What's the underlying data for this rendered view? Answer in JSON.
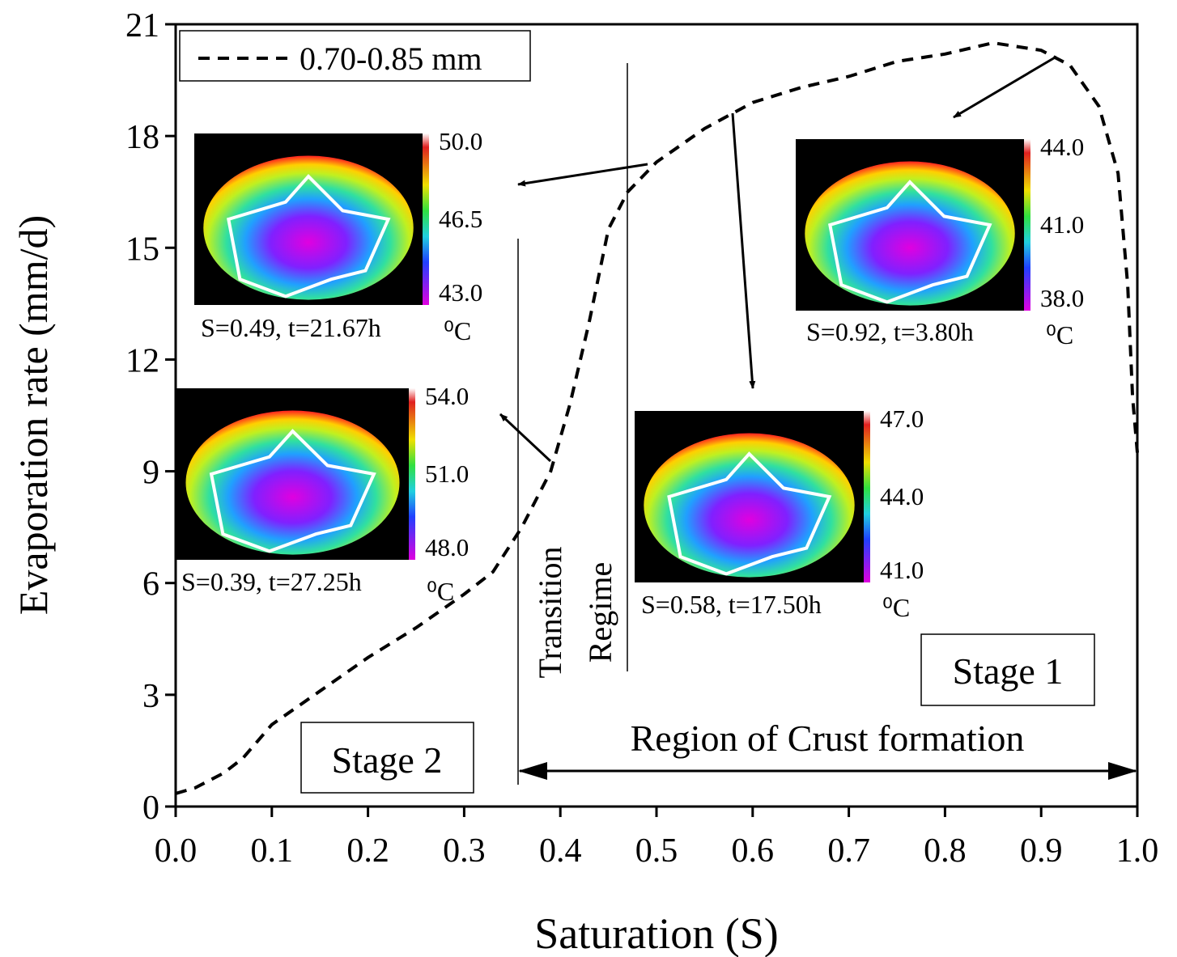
{
  "chart_data": {
    "type": "line",
    "xlabel": "Saturation (S)",
    "ylabel": "Evaporation rate (mm/d)",
    "x": [
      0.0,
      0.02,
      0.05,
      0.07,
      0.1,
      0.15,
      0.2,
      0.25,
      0.3,
      0.33,
      0.36,
      0.39,
      0.41,
      0.43,
      0.45,
      0.47,
      0.5,
      0.55,
      0.6,
      0.65,
      0.7,
      0.75,
      0.8,
      0.85,
      0.9,
      0.93,
      0.96,
      0.98,
      0.99,
      0.995,
      1.0
    ],
    "series": [
      {
        "name": "0.70-0.85 mm",
        "color": "#000000",
        "values": [
          0.35,
          0.5,
          0.9,
          1.3,
          2.2,
          3.1,
          4.0,
          4.8,
          5.7,
          6.3,
          7.5,
          9.0,
          10.8,
          13.0,
          15.5,
          16.5,
          17.3,
          18.2,
          18.9,
          19.3,
          19.6,
          20.0,
          20.2,
          20.5,
          20.3,
          19.9,
          18.8,
          17.0,
          14.0,
          11.0,
          9.5
        ]
      }
    ],
    "xlim": [
      0,
      1
    ],
    "ylim": [
      0,
      21
    ],
    "xticks": [
      {
        "value": 0,
        "label": "0.0"
      },
      0.1,
      0.2,
      0.3,
      0.4,
      0.5,
      0.6,
      0.7,
      0.8,
      0.9,
      {
        "value": 1,
        "label": "1.0"
      }
    ],
    "yticks": [
      0,
      3,
      6,
      9,
      12,
      15,
      18,
      21
    ],
    "legend": "top-left",
    "annotations": [
      "Transition",
      "Regime",
      "Stage 1",
      "Stage 2",
      "Region of Crust formation"
    ],
    "insets": [
      {
        "caption": "S=0.49, t=21.67h",
        "scale_labels": [
          "50.0",
          "46.5",
          "43.0"
        ],
        "unit": "⁰C"
      },
      {
        "caption": "S=0.39, t=27.25h",
        "scale_labels": [
          "54.0",
          "51.0",
          "48.0"
        ],
        "unit": "⁰C"
      },
      {
        "caption": "S=0.92, t=3.80h",
        "scale_labels": [
          "44.0",
          "41.0",
          "38.0"
        ],
        "unit": "⁰C"
      },
      {
        "caption": "S=0.58, t=17.50h",
        "scale_labels": [
          "47.0",
          "44.0",
          "41.0"
        ],
        "unit": "⁰C"
      }
    ]
  }
}
